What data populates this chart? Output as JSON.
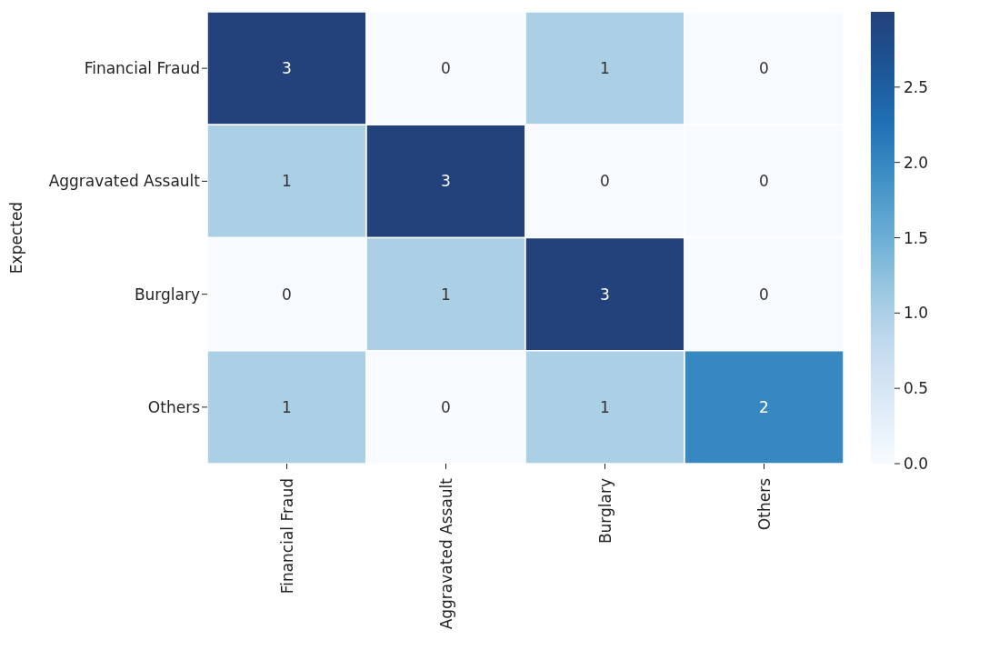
{
  "chart_data": {
    "type": "heatmap",
    "ylabel": "Expected",
    "categories": [
      "Financial Fraud",
      "Aggravated Assault",
      "Burglary",
      "Others"
    ],
    "y_categories": [
      "Financial Fraud",
      "Aggravated Assault",
      "Burglary",
      "Others"
    ],
    "cells": [
      [
        3,
        0,
        1,
        0
      ],
      [
        1,
        3,
        0,
        0
      ],
      [
        0,
        1,
        3,
        0
      ],
      [
        1,
        0,
        1,
        2
      ]
    ],
    "data_labels": true,
    "clim": [
      0,
      3
    ],
    "cticks": [
      {
        "value": 0,
        "label": "0.0"
      },
      0.5,
      {
        "value": 1,
        "label": "1.0"
      },
      1.5,
      {
        "value": 2,
        "label": "2.0"
      },
      2.5
    ]
  }
}
